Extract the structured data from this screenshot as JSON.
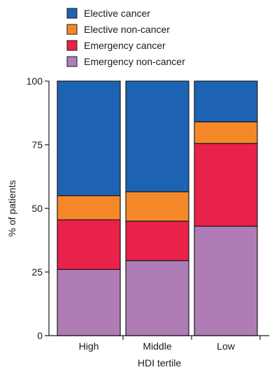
{
  "chart_data": {
    "type": "bar",
    "stacked": true,
    "title": "",
    "xlabel": "HDI tertile",
    "ylabel": "% of patients",
    "ylim": [
      0,
      100
    ],
    "yticks": [
      0,
      25,
      50,
      75,
      100
    ],
    "grid": false,
    "legend_position": "top",
    "categories": [
      "High",
      "Middle",
      "Low"
    ],
    "series": [
      {
        "name": "Emergency non-cancer",
        "color": "#b07cb6",
        "values": [
          26,
          29.5,
          43
        ]
      },
      {
        "name": "Emergency cancer",
        "color": "#e8224a",
        "values": [
          19.5,
          15.5,
          32.5
        ]
      },
      {
        "name": "Elective non-cancer",
        "color": "#f5892a",
        "values": [
          9.5,
          11.5,
          8.5
        ]
      },
      {
        "name": "Elective cancer",
        "color": "#1e63b3",
        "values": [
          45,
          43.5,
          16
        ]
      }
    ],
    "legend_order": [
      "Elective cancer",
      "Elective non-cancer",
      "Emergency cancer",
      "Emergency non-cancer"
    ]
  }
}
